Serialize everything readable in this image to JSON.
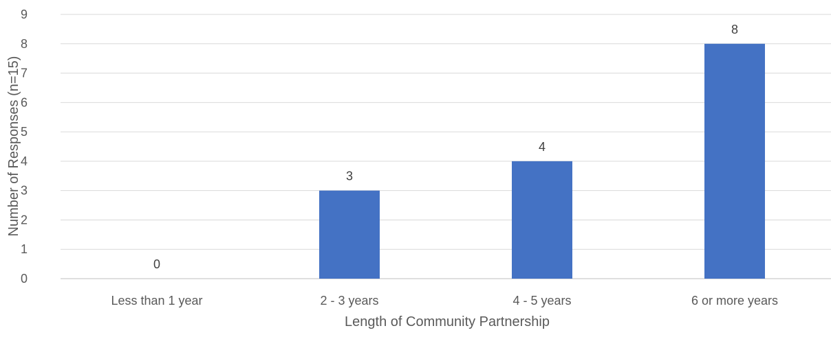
{
  "chart_data": {
    "type": "bar",
    "categories": [
      "Less than 1 year",
      "2 - 3 years",
      "4 - 5 years",
      "6 or more years"
    ],
    "values": [
      0,
      3,
      4,
      8
    ],
    "xlabel": "Length of Community Partnership",
    "ylabel": "Number of Responses (n=15)",
    "ylim": [
      0,
      9
    ],
    "yticks": [
      0,
      1,
      2,
      3,
      4,
      5,
      6,
      7,
      8,
      9
    ],
    "grid": true,
    "legend": "none",
    "bar_color": "#4472C4",
    "data_labels": true
  }
}
